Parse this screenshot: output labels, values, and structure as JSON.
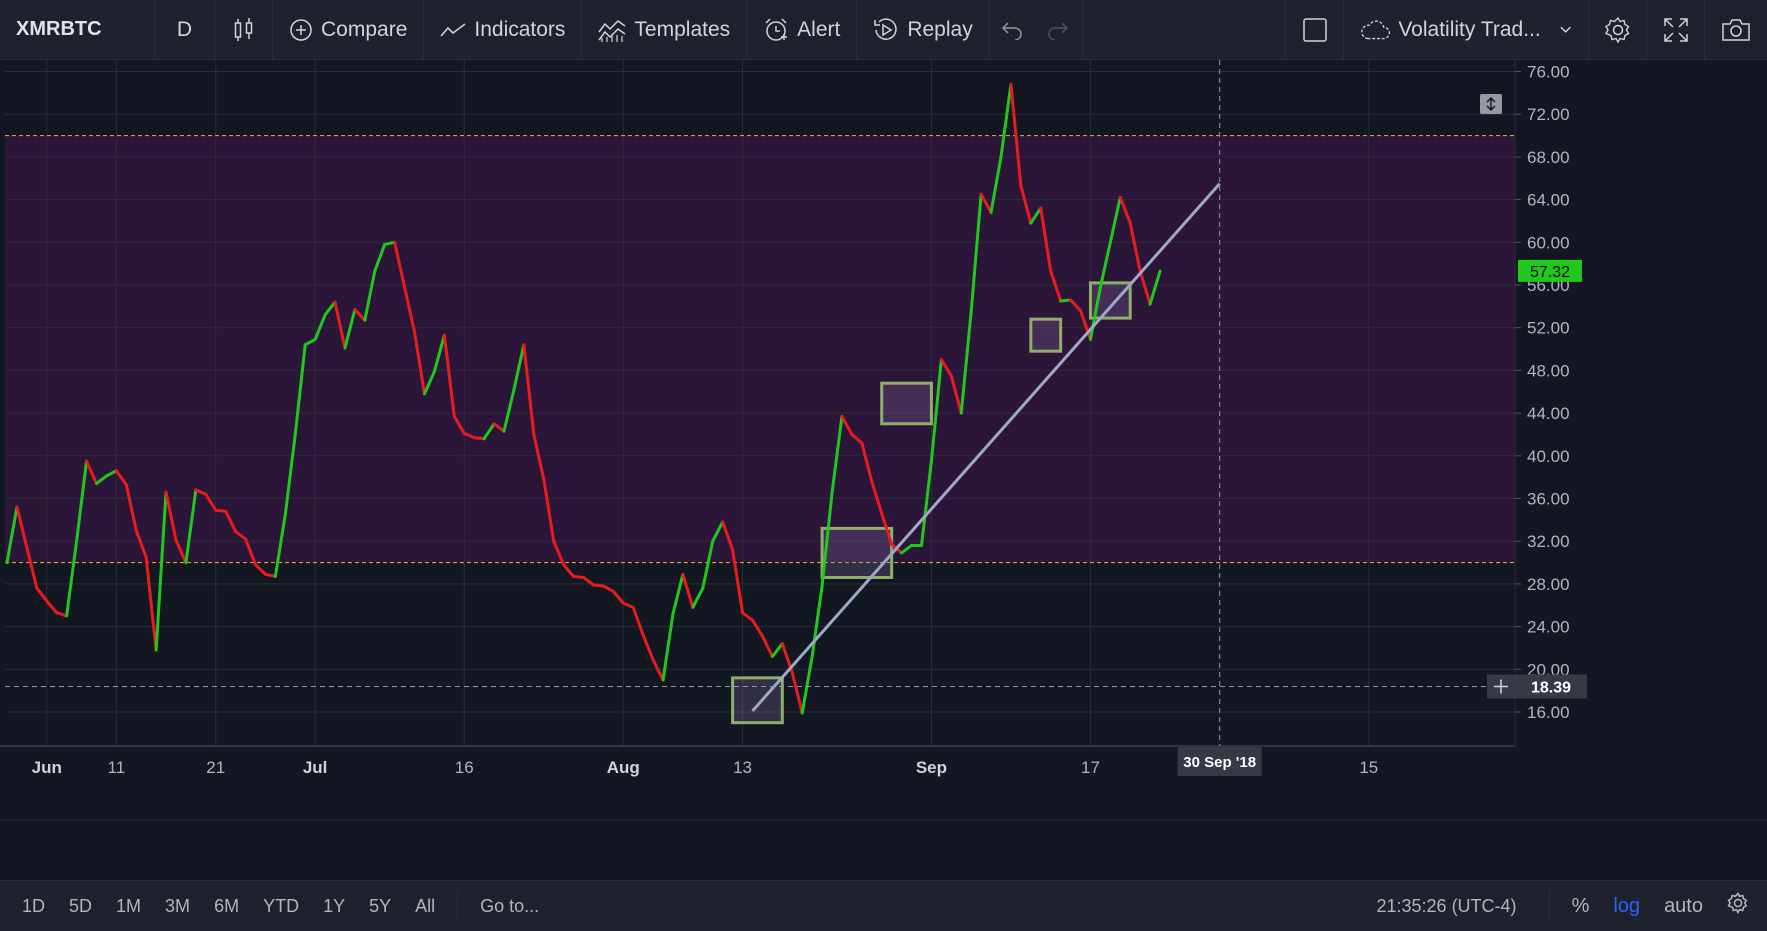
{
  "toolbar": {
    "symbol": "XMRBTC",
    "interval": "D",
    "compare_label": "Compare",
    "indicators_label": "Indicators",
    "templates_label": "Templates",
    "alert_label": "Alert",
    "replay_label": "Replay",
    "layout_name": "Volatility Trad..."
  },
  "bottombar": {
    "ranges": [
      "1D",
      "5D",
      "1M",
      "3M",
      "6M",
      "YTD",
      "1Y",
      "5Y",
      "All"
    ],
    "goto_label": "Go to...",
    "clock": "21:35:26 (UTC-4)",
    "percent_label": "%",
    "log_label": "log",
    "auto_label": "auto"
  },
  "chart_data": {
    "type": "line",
    "symbol": "XMRBTC",
    "up_color": "#22c71d",
    "down_color": "#e71c1c",
    "y_ticks": [
      "76.00",
      "72.00",
      "68.00",
      "64.00",
      "60.00",
      "56.00",
      "52.00",
      "48.00",
      "44.00",
      "40.00",
      "36.00",
      "32.00",
      "28.00",
      "24.00",
      "20.00",
      "16.00"
    ],
    "y_values": [
      76,
      72,
      68,
      64,
      60,
      56,
      52,
      48,
      44,
      40,
      36,
      32,
      28,
      24,
      20,
      16
    ],
    "x_ticks": [
      {
        "label": "Jun",
        "day": 4,
        "bold": true
      },
      {
        "label": "11",
        "day": 11,
        "bold": false
      },
      {
        "label": "21",
        "day": 21,
        "bold": false
      },
      {
        "label": "Jul",
        "day": 31,
        "bold": true
      },
      {
        "label": "16",
        "day": 46,
        "bold": false
      },
      {
        "label": "Aug",
        "day": 62,
        "bold": true
      },
      {
        "label": "13",
        "day": 74,
        "bold": false
      },
      {
        "label": "Sep",
        "day": 93,
        "bold": true
      },
      {
        "label": "17",
        "day": 109,
        "bold": false
      },
      {
        "label": "15",
        "day": 137,
        "bold": false
      }
    ],
    "crosshair_date_label": "30 Sep '18",
    "crosshair_price_label": "18.39",
    "crosshair_day": 122,
    "crosshair_price": 18.39,
    "last_price_label": "57.32",
    "last_price": 57.32,
    "zone_upper": 70,
    "zone_lower": 30,
    "trendline": {
      "from": [
        75,
        16.1
      ],
      "to": [
        122,
        65.5
      ]
    },
    "boxes": [
      {
        "from_day": 73,
        "to_day": 78,
        "low": 15.0,
        "high": 19.2
      },
      {
        "from_day": 82,
        "to_day": 89,
        "low": 28.6,
        "high": 33.2
      },
      {
        "from_day": 88,
        "to_day": 93,
        "low": 43.0,
        "high": 46.8
      },
      {
        "from_day": 103,
        "to_day": 106,
        "low": 49.8,
        "high": 52.8
      },
      {
        "from_day": 109,
        "to_day": 113,
        "low": 52.9,
        "high": 56.2
      }
    ],
    "series": [
      {
        "day": 0,
        "v": 30
      },
      {
        "day": 1,
        "v": 35.2
      },
      {
        "day": 2,
        "v": 31.4
      },
      {
        "day": 3,
        "v": 27.6
      },
      {
        "day": 4,
        "v": 26.4
      },
      {
        "day": 5,
        "v": 25.3
      },
      {
        "day": 6,
        "v": 25.0
      },
      {
        "day": 7,
        "v": 32.0
      },
      {
        "day": 8,
        "v": 39.5
      },
      {
        "day": 9,
        "v": 37.4
      },
      {
        "day": 10,
        "v": 38.1
      },
      {
        "day": 11,
        "v": 38.6
      },
      {
        "day": 12,
        "v": 37.3
      },
      {
        "day": 13,
        "v": 33.0
      },
      {
        "day": 14,
        "v": 30.5
      },
      {
        "day": 15,
        "v": 21.8
      },
      {
        "day": 16,
        "v": 36.6
      },
      {
        "day": 17,
        "v": 32.1
      },
      {
        "day": 18,
        "v": 30.0
      },
      {
        "day": 19,
        "v": 36.8
      },
      {
        "day": 20,
        "v": 36.4
      },
      {
        "day": 21,
        "v": 34.9
      },
      {
        "day": 22,
        "v": 34.8
      },
      {
        "day": 23,
        "v": 32.9
      },
      {
        "day": 24,
        "v": 32.2
      },
      {
        "day": 25,
        "v": 29.8
      },
      {
        "day": 26,
        "v": 28.9
      },
      {
        "day": 27,
        "v": 28.7
      },
      {
        "day": 28,
        "v": 34.5
      },
      {
        "day": 29,
        "v": 42.0
      },
      {
        "day": 30,
        "v": 50.4
      },
      {
        "day": 31,
        "v": 50.9
      },
      {
        "day": 32,
        "v": 53.2
      },
      {
        "day": 33,
        "v": 54.4
      },
      {
        "day": 34,
        "v": 50.1
      },
      {
        "day": 35,
        "v": 53.7
      },
      {
        "day": 36,
        "v": 52.7
      },
      {
        "day": 37,
        "v": 57.3
      },
      {
        "day": 38,
        "v": 59.8
      },
      {
        "day": 39,
        "v": 60.0
      },
      {
        "day": 40,
        "v": 55.8
      },
      {
        "day": 41,
        "v": 51.6
      },
      {
        "day": 42,
        "v": 45.8
      },
      {
        "day": 43,
        "v": 47.9
      },
      {
        "day": 44,
        "v": 51.3
      },
      {
        "day": 45,
        "v": 43.7
      },
      {
        "day": 46,
        "v": 42.1
      },
      {
        "day": 47,
        "v": 41.7
      },
      {
        "day": 48,
        "v": 41.6
      },
      {
        "day": 49,
        "v": 43.0
      },
      {
        "day": 50,
        "v": 42.3
      },
      {
        "day": 51,
        "v": 46.2
      },
      {
        "day": 52,
        "v": 50.4
      },
      {
        "day": 53,
        "v": 42.0
      },
      {
        "day": 54,
        "v": 37.8
      },
      {
        "day": 55,
        "v": 32.0
      },
      {
        "day": 56,
        "v": 29.8
      },
      {
        "day": 57,
        "v": 28.7
      },
      {
        "day": 58,
        "v": 28.6
      },
      {
        "day": 59,
        "v": 27.9
      },
      {
        "day": 60,
        "v": 27.8
      },
      {
        "day": 61,
        "v": 27.3
      },
      {
        "day": 62,
        "v": 26.2
      },
      {
        "day": 63,
        "v": 25.8
      },
      {
        "day": 64,
        "v": 23.2
      },
      {
        "day": 65,
        "v": 20.9
      },
      {
        "day": 66,
        "v": 19.0
      },
      {
        "day": 67,
        "v": 25.2
      },
      {
        "day": 68,
        "v": 28.9
      },
      {
        "day": 69,
        "v": 25.8
      },
      {
        "day": 70,
        "v": 27.6
      },
      {
        "day": 71,
        "v": 32.0
      },
      {
        "day": 72,
        "v": 33.8
      },
      {
        "day": 73,
        "v": 31.2
      },
      {
        "day": 74,
        "v": 25.3
      },
      {
        "day": 75,
        "v": 24.6
      },
      {
        "day": 76,
        "v": 23.1
      },
      {
        "day": 77,
        "v": 21.2
      },
      {
        "day": 78,
        "v": 22.4
      },
      {
        "day": 79,
        "v": 19.7
      },
      {
        "day": 80,
        "v": 15.9
      },
      {
        "day": 81,
        "v": 21.2
      },
      {
        "day": 82,
        "v": 27.8
      },
      {
        "day": 83,
        "v": 36.5
      },
      {
        "day": 84,
        "v": 43.7
      },
      {
        "day": 85,
        "v": 42.0
      },
      {
        "day": 86,
        "v": 41.2
      },
      {
        "day": 87,
        "v": 37.6
      },
      {
        "day": 88,
        "v": 34.6
      },
      {
        "day": 89,
        "v": 31.7
      },
      {
        "day": 90,
        "v": 30.9
      },
      {
        "day": 91,
        "v": 31.6
      },
      {
        "day": 92,
        "v": 31.6
      },
      {
        "day": 93,
        "v": 39.5
      },
      {
        "day": 94,
        "v": 49.0
      },
      {
        "day": 95,
        "v": 47.5
      },
      {
        "day": 96,
        "v": 44.0
      },
      {
        "day": 97,
        "v": 53.5
      },
      {
        "day": 98,
        "v": 64.5
      },
      {
        "day": 99,
        "v": 62.8
      },
      {
        "day": 100,
        "v": 68.0
      },
      {
        "day": 101,
        "v": 74.8
      },
      {
        "day": 102,
        "v": 65.3
      },
      {
        "day": 103,
        "v": 61.8
      },
      {
        "day": 104,
        "v": 63.2
      },
      {
        "day": 105,
        "v": 57.3
      },
      {
        "day": 106,
        "v": 54.5
      },
      {
        "day": 107,
        "v": 54.6
      },
      {
        "day": 108,
        "v": 53.6
      },
      {
        "day": 109,
        "v": 50.9
      },
      {
        "day": 110,
        "v": 55.8
      },
      {
        "day": 111,
        "v": 60.0
      },
      {
        "day": 112,
        "v": 64.2
      },
      {
        "day": 113,
        "v": 61.8
      },
      {
        "day": 114,
        "v": 57.3
      },
      {
        "day": 115,
        "v": 54.2
      },
      {
        "day": 116,
        "v": 57.3
      }
    ]
  }
}
